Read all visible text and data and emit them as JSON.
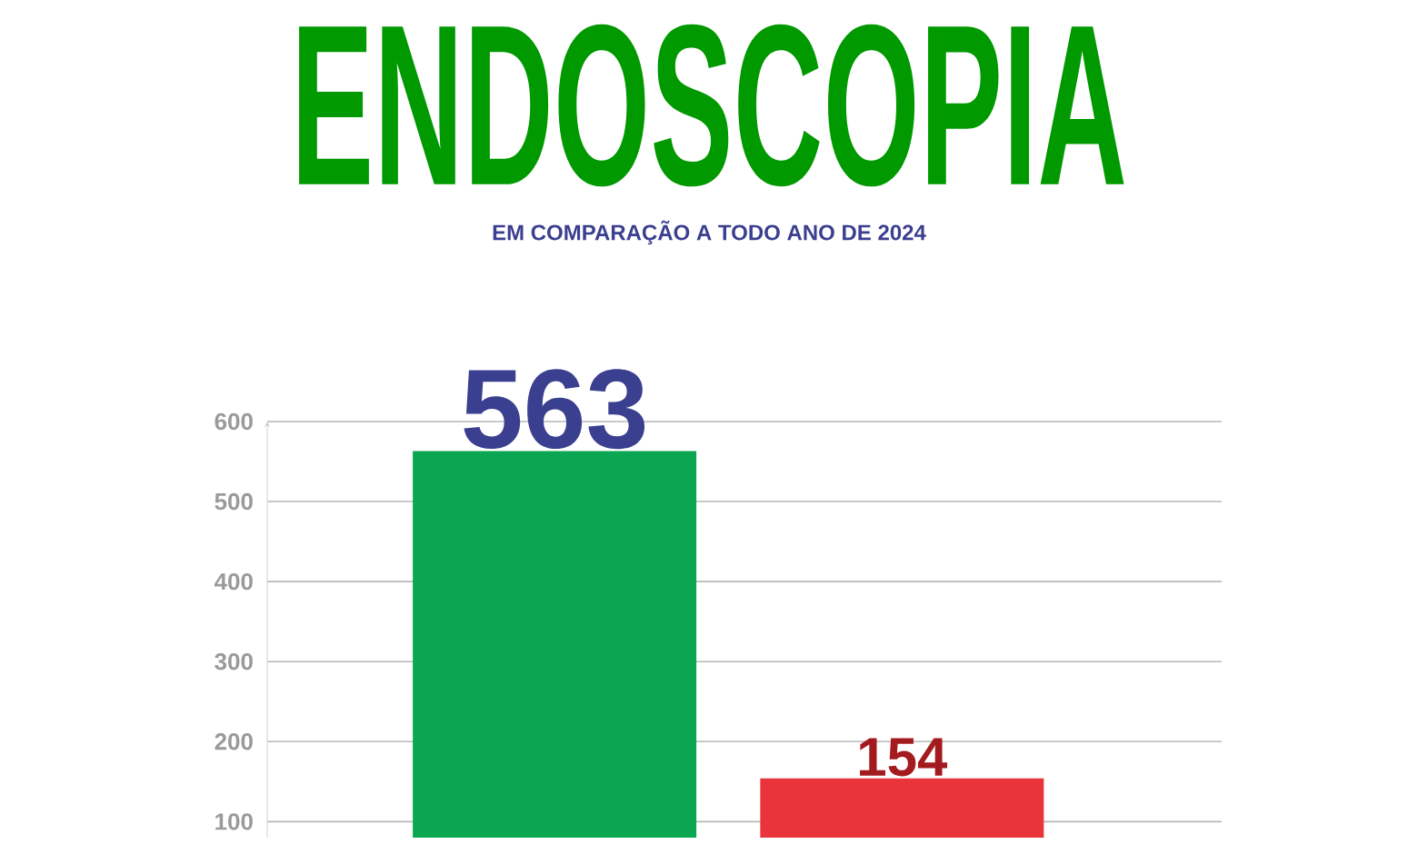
{
  "chart_data": {
    "type": "bar",
    "title": "ENDOSCOPIA",
    "subtitle": "EM COMPARAÇÃO A TODO ANO DE 2024",
    "categories": [
      null,
      null
    ],
    "values": [
      563,
      154
    ],
    "colors": [
      "#0aa651",
      "#e8343a"
    ],
    "data_labels": true,
    "ylim": [
      80,
      600
    ],
    "yticks": [
      100,
      200,
      300,
      400,
      500,
      600
    ],
    "grid": "y"
  }
}
